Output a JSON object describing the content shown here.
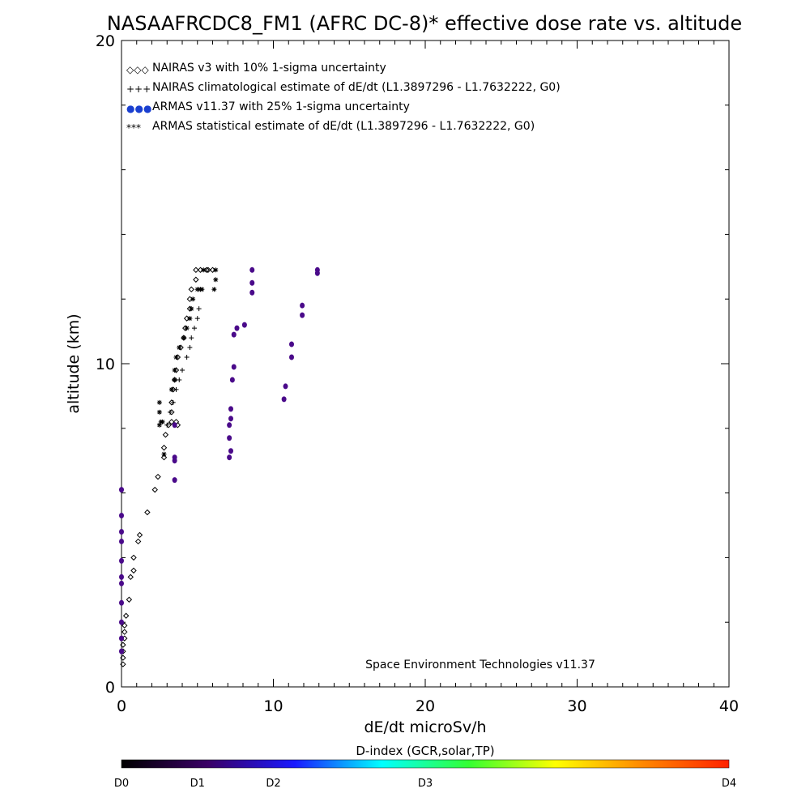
{
  "chart_data": {
    "type": "scatter",
    "title": "NASAAFRCDC8_FM1 (AFRC DC-8)* effective dose rate vs. altitude",
    "xlabel": "dE/dt microSv/h",
    "ylabel": "altitude (km)",
    "xlim": [
      0,
      40
    ],
    "ylim": [
      0,
      20
    ],
    "x_ticks": [
      0,
      10,
      20,
      30,
      40
    ],
    "y_ticks": [
      0,
      10,
      20
    ],
    "grid": false,
    "legend_position": "top-left",
    "annotation": "Space Environment Technologies v11.37",
    "legend": [
      {
        "symbol": "◇◇◇",
        "label": "NAIRAS v3 with 10% 1-sigma uncertainty",
        "color": "#000000"
      },
      {
        "symbol": "+++",
        "label": "NAIRAS climatological estimate of dE/dt (L1.3897296 - L1.7632222, G0)",
        "color": "#000000"
      },
      {
        "symbol": "●●●",
        "label": "ARMAS v11.37 with 25% 1-sigma uncertainty",
        "color": "#1a3fd0"
      },
      {
        "symbol": "***",
        "label": "ARMAS statistical estimate of dE/dt (L1.3897296 - L1.7632222, G0)",
        "color": "#000000"
      }
    ],
    "series": [
      {
        "name": "NAIRAS v3 with 10% 1-sigma uncertainty",
        "marker": "diamond",
        "color": "#000000",
        "x": [
          0.1,
          0.1,
          0.1,
          0.1,
          0.2,
          0.2,
          0.2,
          0.3,
          0.5,
          0.6,
          0.8,
          0.8,
          1.1,
          1.2,
          1.7,
          2.2,
          2.4,
          2.8,
          2.8,
          2.9,
          3.1,
          3.3,
          3.3,
          3.3,
          3.4,
          3.5,
          3.6,
          3.6,
          3.7,
          3.7,
          3.9,
          4.1,
          4.2,
          4.3,
          4.5,
          4.5,
          4.6,
          4.9,
          4.9,
          5.2,
          5.6,
          5.7,
          6.0
        ],
        "y": [
          0.7,
          0.9,
          1.1,
          1.3,
          1.5,
          1.7,
          1.9,
          2.2,
          2.7,
          3.4,
          3.6,
          4.0,
          4.5,
          4.7,
          5.4,
          6.1,
          6.5,
          7.1,
          7.4,
          7.8,
          8.1,
          8.2,
          8.5,
          8.8,
          9.2,
          9.5,
          9.8,
          8.2,
          8.1,
          10.2,
          10.5,
          10.8,
          11.1,
          11.4,
          11.7,
          12.0,
          12.3,
          12.6,
          12.9,
          12.9,
          12.9,
          12.9,
          12.9
        ]
      },
      {
        "name": "NAIRAS climatological estimate of dE/dt (L1.3897296 - L1.7632222, G0)",
        "marker": "plus",
        "color": "#000000",
        "x": [
          3.0,
          3.2,
          3.4,
          3.6,
          3.8,
          4.0,
          4.3,
          4.5,
          4.6,
          4.8,
          5.0,
          5.1,
          5.1
        ],
        "y": [
          8.1,
          8.5,
          8.8,
          9.2,
          9.5,
          9.8,
          10.2,
          10.5,
          10.8,
          11.1,
          11.4,
          11.7,
          12.3
        ]
      },
      {
        "name": "ARMAS v11.37 with 25% 1-sigma uncertainty",
        "marker": "dot",
        "color": "#4a0a8a",
        "x": [
          0,
          0,
          0,
          0,
          0,
          0,
          0,
          0,
          0,
          0,
          0,
          3.5,
          3.5,
          3.5,
          3.5,
          7.1,
          7.2,
          7.1,
          7.1,
          7.2,
          7.2,
          7.3,
          7.4,
          7.4,
          7.6,
          8.1,
          8.6,
          8.6,
          8.6,
          10.7,
          10.8,
          11.2,
          11.2,
          11.9,
          11.9,
          12.9,
          12.9
        ],
        "y": [
          1.1,
          1.5,
          2.0,
          2.6,
          3.2,
          3.4,
          3.9,
          4.5,
          4.8,
          5.3,
          6.1,
          6.4,
          7.0,
          7.1,
          8.1,
          7.1,
          7.3,
          7.7,
          8.1,
          8.3,
          8.6,
          9.5,
          9.9,
          10.9,
          11.1,
          11.2,
          12.2,
          12.5,
          12.9,
          8.9,
          9.3,
          10.2,
          10.6,
          11.5,
          11.8,
          12.8,
          12.9
        ]
      },
      {
        "name": "ARMAS statistical estimate of dE/dt (L1.3897296 - L1.7632222, G0)",
        "marker": "asterisk",
        "color": "#000000",
        "x": [
          2.5,
          2.5,
          2.5,
          2.6,
          2.7,
          2.8,
          3.3,
          3.5,
          3.5,
          3.6,
          3.8,
          4.1,
          4.3,
          4.5,
          4.6,
          4.7,
          5.0,
          5.2,
          5.3,
          5.4,
          6.1,
          6.2,
          6.2
        ],
        "y": [
          8.1,
          8.5,
          8.8,
          8.2,
          8.2,
          7.2,
          9.2,
          9.5,
          9.8,
          10.2,
          10.5,
          10.8,
          11.1,
          11.4,
          11.7,
          12.0,
          12.3,
          12.3,
          12.3,
          12.9,
          12.3,
          12.6,
          12.9
        ]
      }
    ],
    "colorbar": {
      "title": "D-index (GCR,solar,TP)",
      "labels": [
        "D0",
        "D1",
        "D2",
        "D3",
        "D4"
      ],
      "label_positions": [
        0,
        0.125,
        0.25,
        0.5,
        1.0
      ],
      "stops": [
        "#000000",
        "#3a0066",
        "#1a1aff",
        "#00ffff",
        "#33ff33",
        "#ffff00",
        "#ff8800",
        "#ff2200"
      ]
    }
  }
}
